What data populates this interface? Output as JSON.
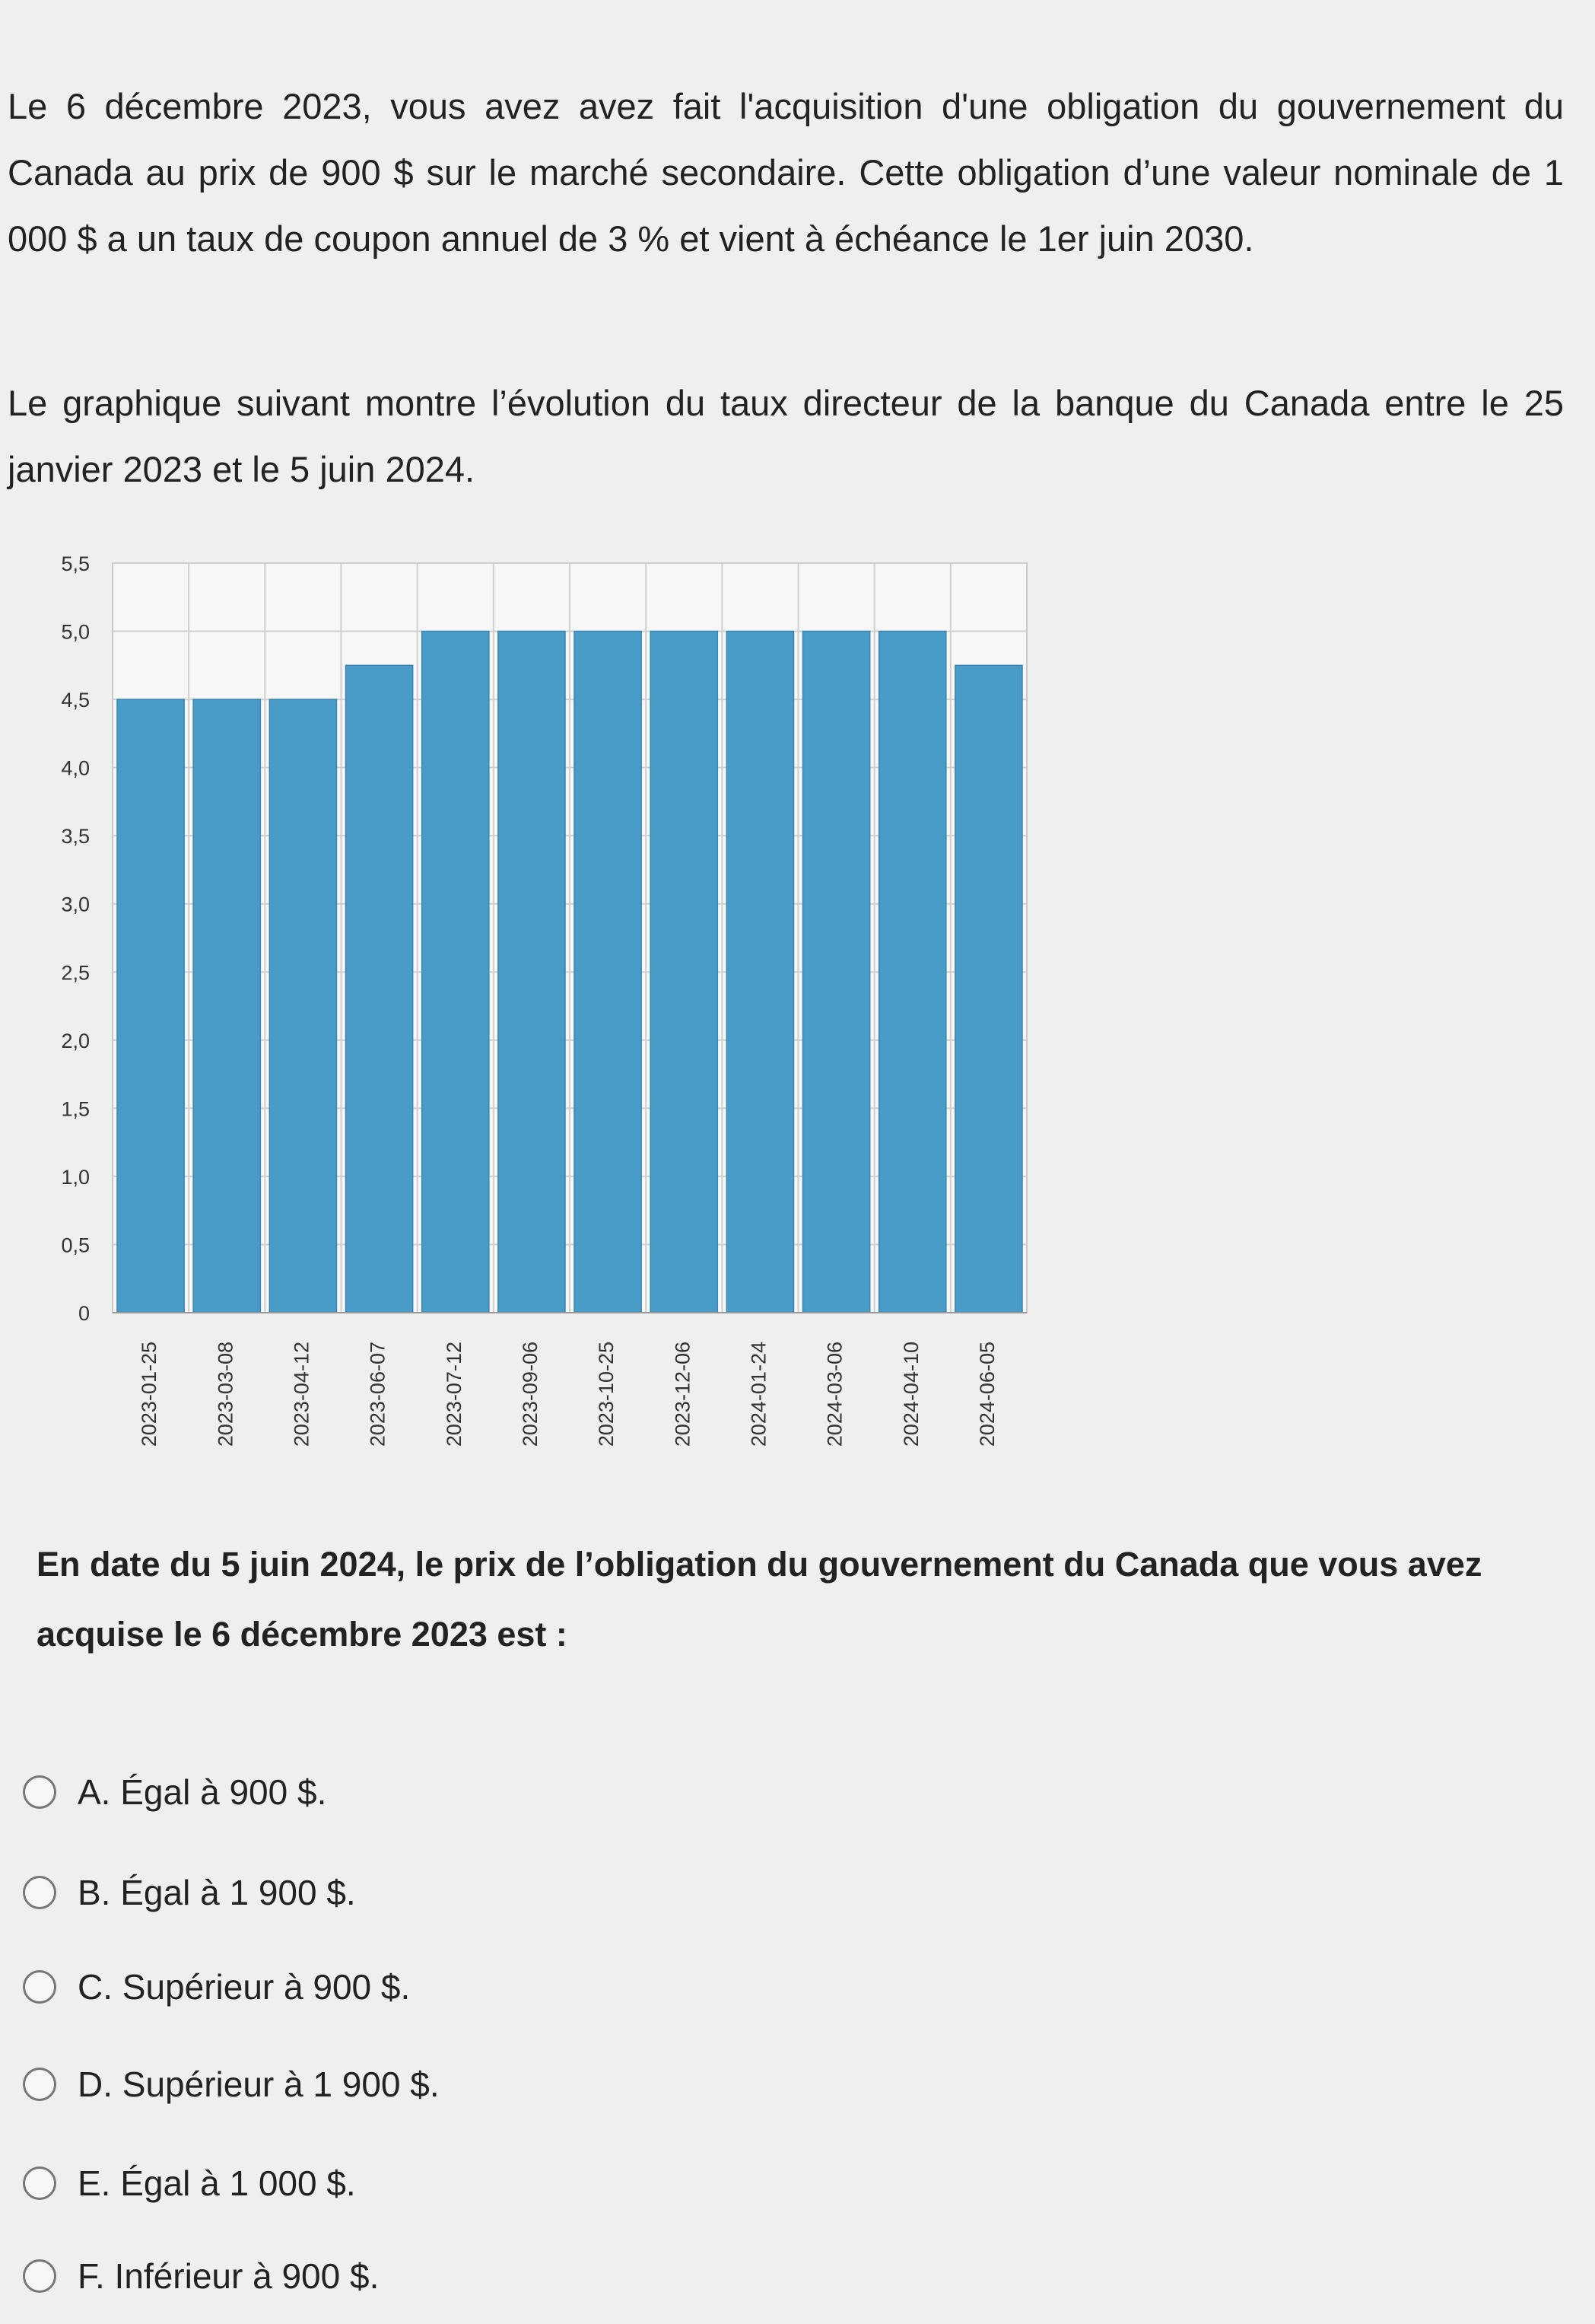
{
  "intro_text": "Le 6 décembre 2023, vous avez avez fait l'acquisition d'une obligation du gouvernement du Canada au prix de 900 $ sur le marché secondaire. Cette obligation d’une valeur nominale de 1 000 $ a un taux de coupon annuel de 3 % et vient à échéance le 1er juin 2030.",
  "chart_intro_text": "Le graphique suivant montre l’évolution du taux directeur de la banque du Canada entre le 25 janvier 2023 et le 5 juin 2024.",
  "chart_data": {
    "type": "bar",
    "categories": [
      "2023-01-25",
      "2023-03-08",
      "2023-04-12",
      "2023-06-07",
      "2023-07-12",
      "2023-09-06",
      "2023-10-25",
      "2023-12-06",
      "2024-01-24",
      "2024-03-06",
      "2024-04-10",
      "2024-06-05"
    ],
    "values": [
      4.5,
      4.5,
      4.5,
      4.75,
      5.0,
      5.0,
      5.0,
      5.0,
      5.0,
      5.0,
      5.0,
      4.75
    ],
    "yticks": [
      "0",
      "0,5",
      "1,0",
      "1,5",
      "2,0",
      "2,5",
      "3,0",
      "3,5",
      "4,0",
      "4,5",
      "5,0",
      "5,5"
    ],
    "ylim": [
      0,
      5.5
    ],
    "grid": true,
    "bar_color": "#4a9cc8"
  },
  "question_text": "En date du 5 juin 2024, le prix de l’obligation du gouvernement du Canada que vous avez acquise le 6 décembre 2023 est :",
  "options": [
    {
      "label": "A. Égal à 900 $."
    },
    {
      "label": "B. Égal à 1 900 $."
    },
    {
      "label": "C. Supérieur à 900 $."
    },
    {
      "label": "D. Supérieur à 1 900 $."
    },
    {
      "label": "E. Égal à 1 000 $."
    },
    {
      "label": "F. Inférieur à 900 $."
    }
  ]
}
